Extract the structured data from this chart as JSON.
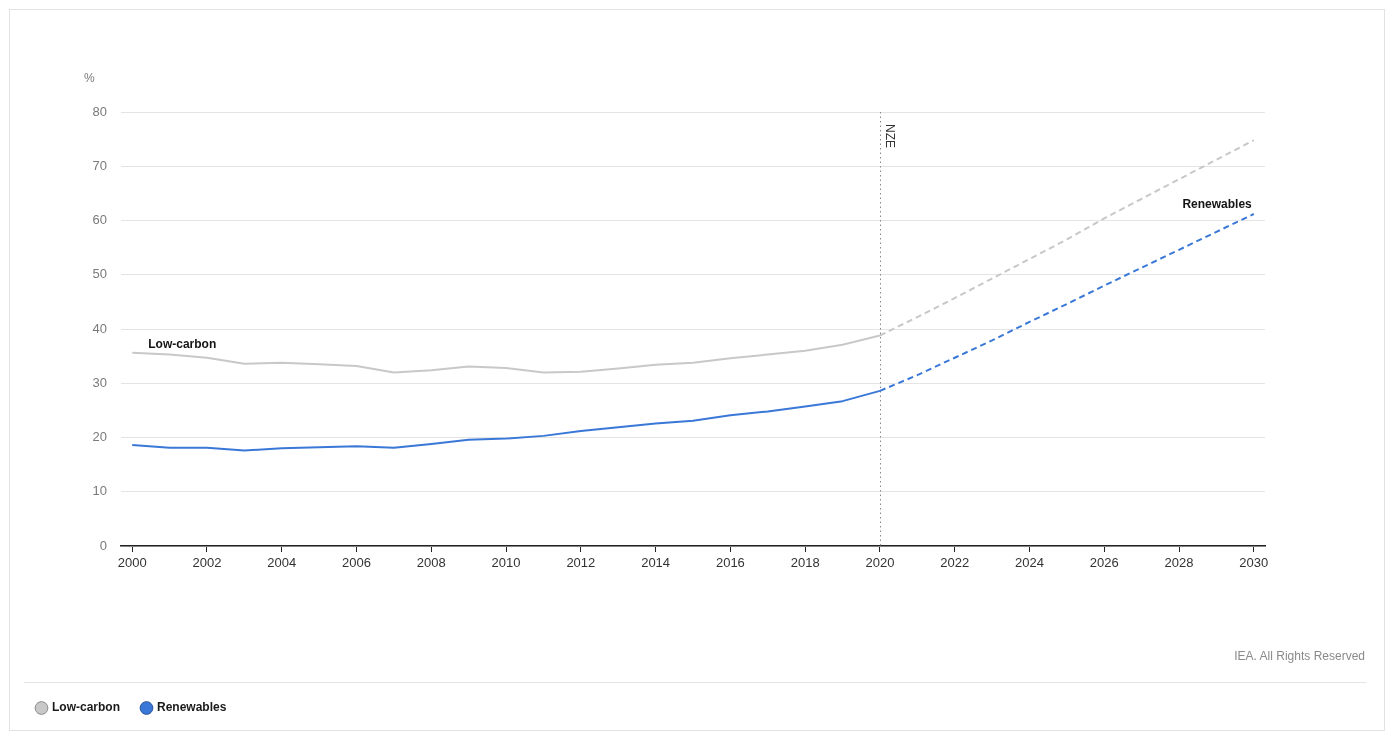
{
  "chart_data": {
    "type": "line",
    "ylabel": "%",
    "xlim": [
      1999.7,
      2030.3
    ],
    "xticks": [
      2000,
      2002,
      2004,
      2006,
      2008,
      2010,
      2012,
      2014,
      2016,
      2018,
      2020,
      2022,
      2024,
      2026,
      2028,
      2030
    ],
    "ylim": [
      0,
      80
    ],
    "yticks": [
      0,
      10,
      20,
      30,
      40,
      50,
      60,
      70,
      80
    ],
    "grid": "y",
    "legend": "bottom left",
    "marker": "none",
    "series": [
      {
        "name": "Low-carbon",
        "color": "#c8c8c8",
        "line_style": "solid",
        "x": [
          2000,
          2001,
          2002,
          2003,
          2004,
          2005,
          2006,
          2007,
          2008,
          2009,
          2010,
          2011,
          2012,
          2013,
          2014,
          2015,
          2016,
          2017,
          2018,
          2019,
          2020
        ],
        "values": [
          35.6,
          35.3,
          34.7,
          33.6,
          33.8,
          33.5,
          33.2,
          32.0,
          32.4,
          33.1,
          32.8,
          32.0,
          32.1,
          32.7,
          33.4,
          33.8,
          34.6,
          35.3,
          36.0,
          37.1,
          38.8
        ]
      },
      {
        "color": "#c8c8c8",
        "line_style": "dashed",
        "x": [
          2020,
          2021,
          2022,
          2023,
          2024,
          2025,
          2026,
          2027,
          2028,
          2029,
          2030
        ],
        "values": [
          38.8,
          42.2,
          45.7,
          49.3,
          52.9,
          56.5,
          60.4,
          64.0,
          67.6,
          71.2,
          74.8
        ]
      },
      {
        "name": "Renewables",
        "color": "#3a78d8",
        "line_style": "solid",
        "x": [
          2000,
          2001,
          2002,
          2003,
          2004,
          2005,
          2006,
          2007,
          2008,
          2009,
          2010,
          2011,
          2012,
          2013,
          2014,
          2015,
          2016,
          2017,
          2018,
          2019,
          2020
        ],
        "values": [
          18.6,
          18.1,
          18.1,
          17.6,
          18.0,
          18.2,
          18.4,
          18.1,
          18.8,
          19.6,
          19.8,
          20.3,
          21.2,
          21.9,
          22.6,
          23.1,
          24.1,
          24.8,
          25.7,
          26.7,
          28.6
        ]
      },
      {
        "color": "#3a78d8",
        "line_style": "dashed",
        "x": [
          2020,
          2021,
          2022,
          2023,
          2024,
          2025,
          2026,
          2027,
          2028,
          2029,
          2030
        ],
        "values": [
          28.6,
          31.5,
          34.7,
          37.9,
          41.3,
          44.6,
          48.0,
          51.3,
          54.6,
          57.9,
          61.2
        ]
      }
    ],
    "ref_lines": [
      {
        "axis": "x",
        "value": 2020,
        "label": "NZE",
        "line_style": "dotted",
        "color": "#888888"
      }
    ],
    "annotations": [
      {
        "text": "Low-carbon",
        "x": 2000,
        "y": 35.6
      },
      {
        "text": "Renewables",
        "x": 2030,
        "y": 61.2
      },
      "IEA. All Rights Reserved"
    ]
  }
}
